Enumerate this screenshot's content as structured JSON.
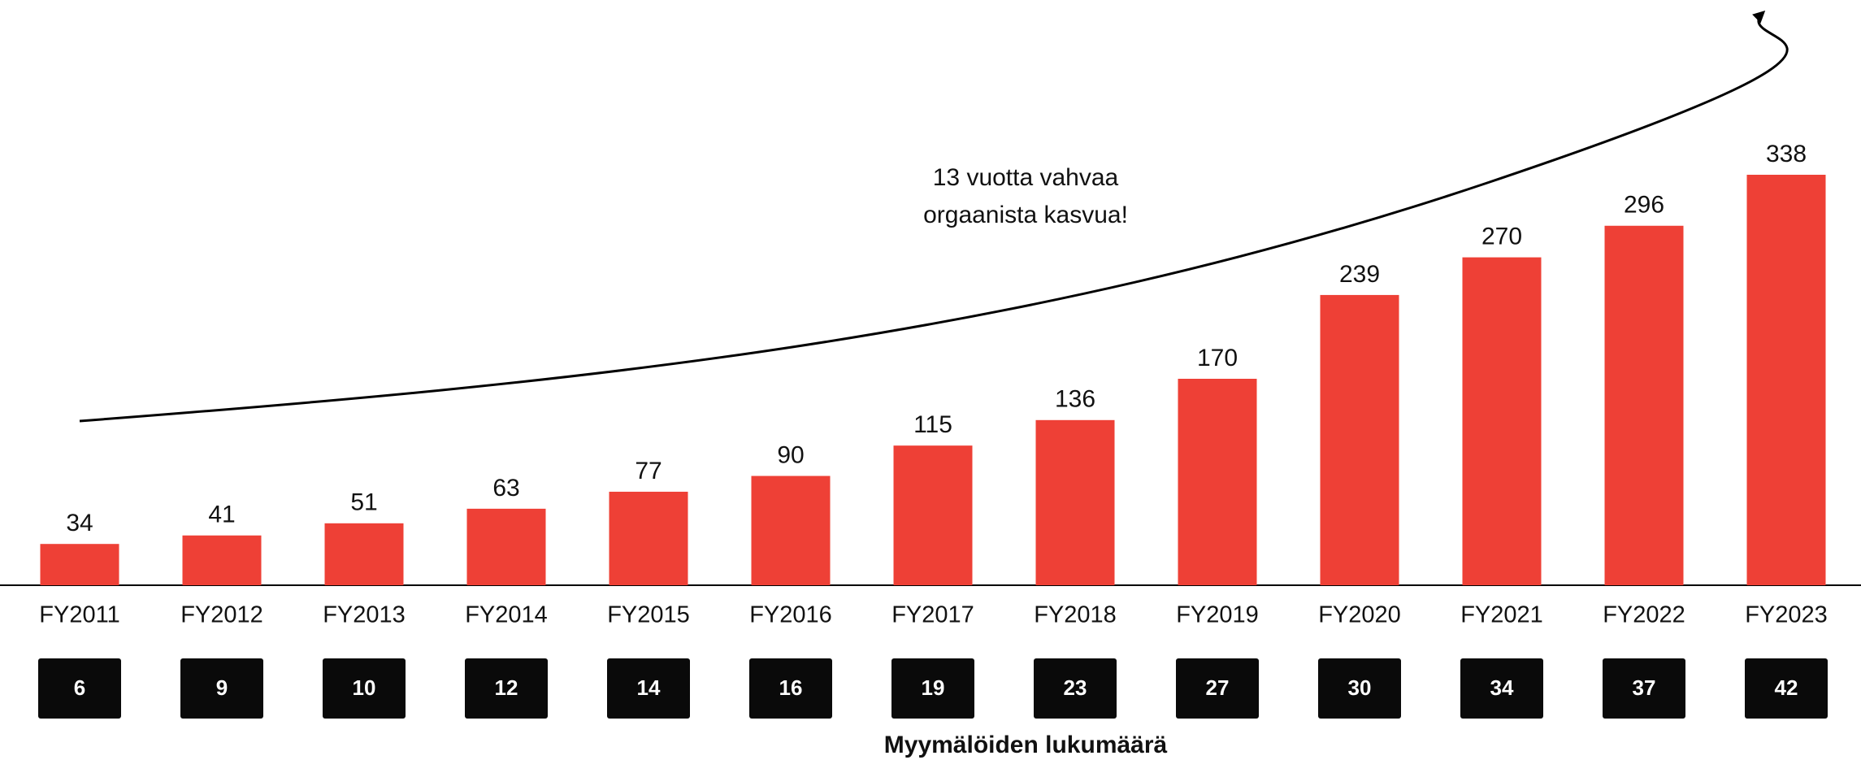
{
  "chart_data": {
    "type": "bar",
    "categories": [
      "FY2011",
      "FY2012",
      "FY2013",
      "FY2014",
      "FY2015",
      "FY2016",
      "FY2017",
      "FY2018",
      "FY2019",
      "FY2020",
      "FY2021",
      "FY2022",
      "FY2023"
    ],
    "values": [
      34,
      41,
      51,
      63,
      77,
      90,
      115,
      136,
      170,
      239,
      270,
      296,
      338
    ],
    "color": "#ee4036",
    "annotation": [
      "13 vuotta vahvaa",
      "orgaanista kasvua!"
    ],
    "store_counts": {
      "label": "Myymälöiden lukumäärä",
      "values": [
        6,
        9,
        10,
        12,
        14,
        16,
        19,
        23,
        27,
        30,
        34,
        37,
        42
      ]
    }
  }
}
